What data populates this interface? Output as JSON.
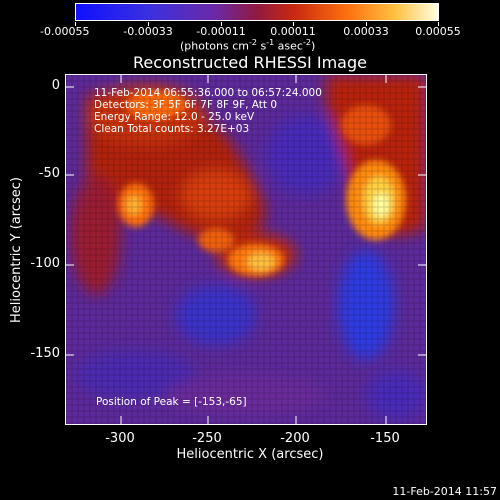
{
  "colorbar": {
    "tick_labels": [
      "-0.00055",
      "-0.00033",
      "-0.00011",
      "0.00011",
      "0.00033",
      "0.00055"
    ],
    "units_prefix": "(photons cm",
    "units_exp1": "-2",
    "units_mid": " s",
    "units_exp2": "-1",
    "units_mid2": " asec",
    "units_exp3": "-2",
    "units_suffix": ")"
  },
  "plot": {
    "title": "Reconstructed RHESSI Image",
    "info_lines": [
      "11-Feb-2014 06:55:36.000  to  06:57:24.000",
      "Detectors: 3F 5F 6F 7F 8F 9F, Att 0",
      "Energy Range: 12.0 - 25.0 keV",
      "Clean     Total counts: 3.27E+03"
    ],
    "peak_label": "Position of Peak = [-153,-65]",
    "x_axis_label": "Heliocentric X (arcsec)",
    "y_axis_label": "Heliocentric Y (arcsec)",
    "x_ticks": [
      "-300",
      "-250",
      "-200",
      "-150"
    ],
    "y_ticks": [
      "0",
      "-50",
      "-100",
      "-150"
    ]
  },
  "footer": {
    "timestamp": "11-Feb-2014 11:57"
  },
  "colors": {
    "background": "#000000",
    "colormap": [
      "#1010ff",
      "#3a3aff",
      "#5a2fcf",
      "#7a2aa0",
      "#a01820",
      "#d83010",
      "#ff7a10",
      "#ffc040",
      "#ffff80",
      "#ffffff"
    ]
  }
}
